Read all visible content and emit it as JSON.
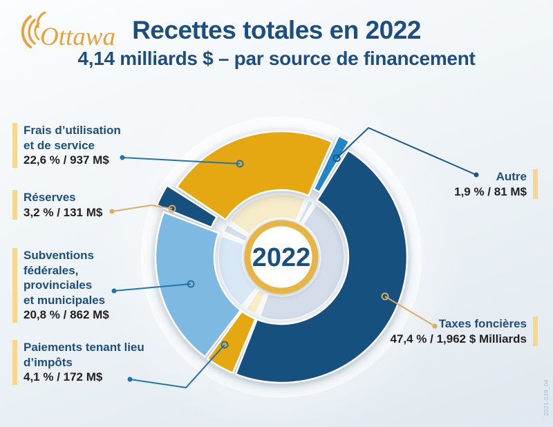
{
  "header": {
    "logo_text": "Ottawa",
    "title": "Recettes totales en 2022",
    "subtitle": "4,14 milliards $ – par source de financement"
  },
  "chart_data": {
    "type": "pie",
    "title": "Recettes totales en 2022",
    "subtitle": "4,14 milliards $ – par source de financement",
    "total": "4,14 milliards $",
    "center_label": "2022",
    "start_angle_deg": 24.5,
    "direction": "clockwise",
    "legend_position": "callouts",
    "slices": [
      {
        "id": "autre",
        "label": "Autre",
        "pct": 1.9,
        "amount": "81 M$",
        "color": "#2286c6",
        "pale": "#d2e4f2",
        "explode": 12
      },
      {
        "id": "taxes",
        "label": "Taxes foncières",
        "pct": 47.4,
        "amount": "1,962 $ Milliards",
        "color": "#16507e",
        "pale": "#d4dde9",
        "explode": 0
      },
      {
        "id": "paiements",
        "label": "Paiements tenant lieu d’impôts",
        "pct": 4.1,
        "amount": "172 M$",
        "color": "#e5a812",
        "pale": "#f6ecca",
        "explode": 0
      },
      {
        "id": "subventions",
        "label": "Subventions fédérales, provinciales et municipales",
        "pct": 20.8,
        "amount": "862 M$",
        "color": "#7db9e0",
        "pale": "#d9e8f5",
        "explode": 0
      },
      {
        "id": "reserves",
        "label": "Réserves",
        "pct": 3.2,
        "amount": "131 M$",
        "color": "#16507e",
        "pale": "#d4dde9",
        "explode": 13
      },
      {
        "id": "frais",
        "label": "Frais d’utilisation et de service",
        "pct": 22.6,
        "amount": "937 M$",
        "color": "#e5a812",
        "pale": "#f6ecca",
        "explode": 0
      }
    ]
  },
  "callouts": [
    {
      "id": "frais",
      "name": "Frais d’utilisation\net de service",
      "value": "22,6 % / 937 M$"
    },
    {
      "id": "reserves",
      "name": "Réserves",
      "value": "3,2 % / 131 M$"
    },
    {
      "id": "subventions",
      "name": "Subventions\nfédérales,\nprovinciales\net municipales",
      "value": "20,8 % / 862 M$"
    },
    {
      "id": "paiements",
      "name": "Paiements tenant lieu\nd’impôts",
      "value": "4,1 % / 172 M$"
    },
    {
      "id": "autre",
      "name": "Autre",
      "value": "1,9 % / 81 M$"
    },
    {
      "id": "taxes",
      "name": "Taxes foncières",
      "value": "47,4 % / 1,962 $ Milliards"
    }
  ],
  "footer": {
    "doc_code": "2021-039_04"
  },
  "colors": {
    "gold_slice": "#e5a812",
    "navy_slice": "#16507e",
    "bright_blue_slice": "#2286c6",
    "light_blue_slice": "#7db9e0",
    "center_ring_gold": "#e7b545",
    "accent_bar_gold": "#f5d88c",
    "heading_navy": "#1d4e7f",
    "value_text": "#231f20",
    "leader_blue": "#2273ab",
    "leader_gold": "#ddab63",
    "logo_gold": "#e8a23c"
  }
}
